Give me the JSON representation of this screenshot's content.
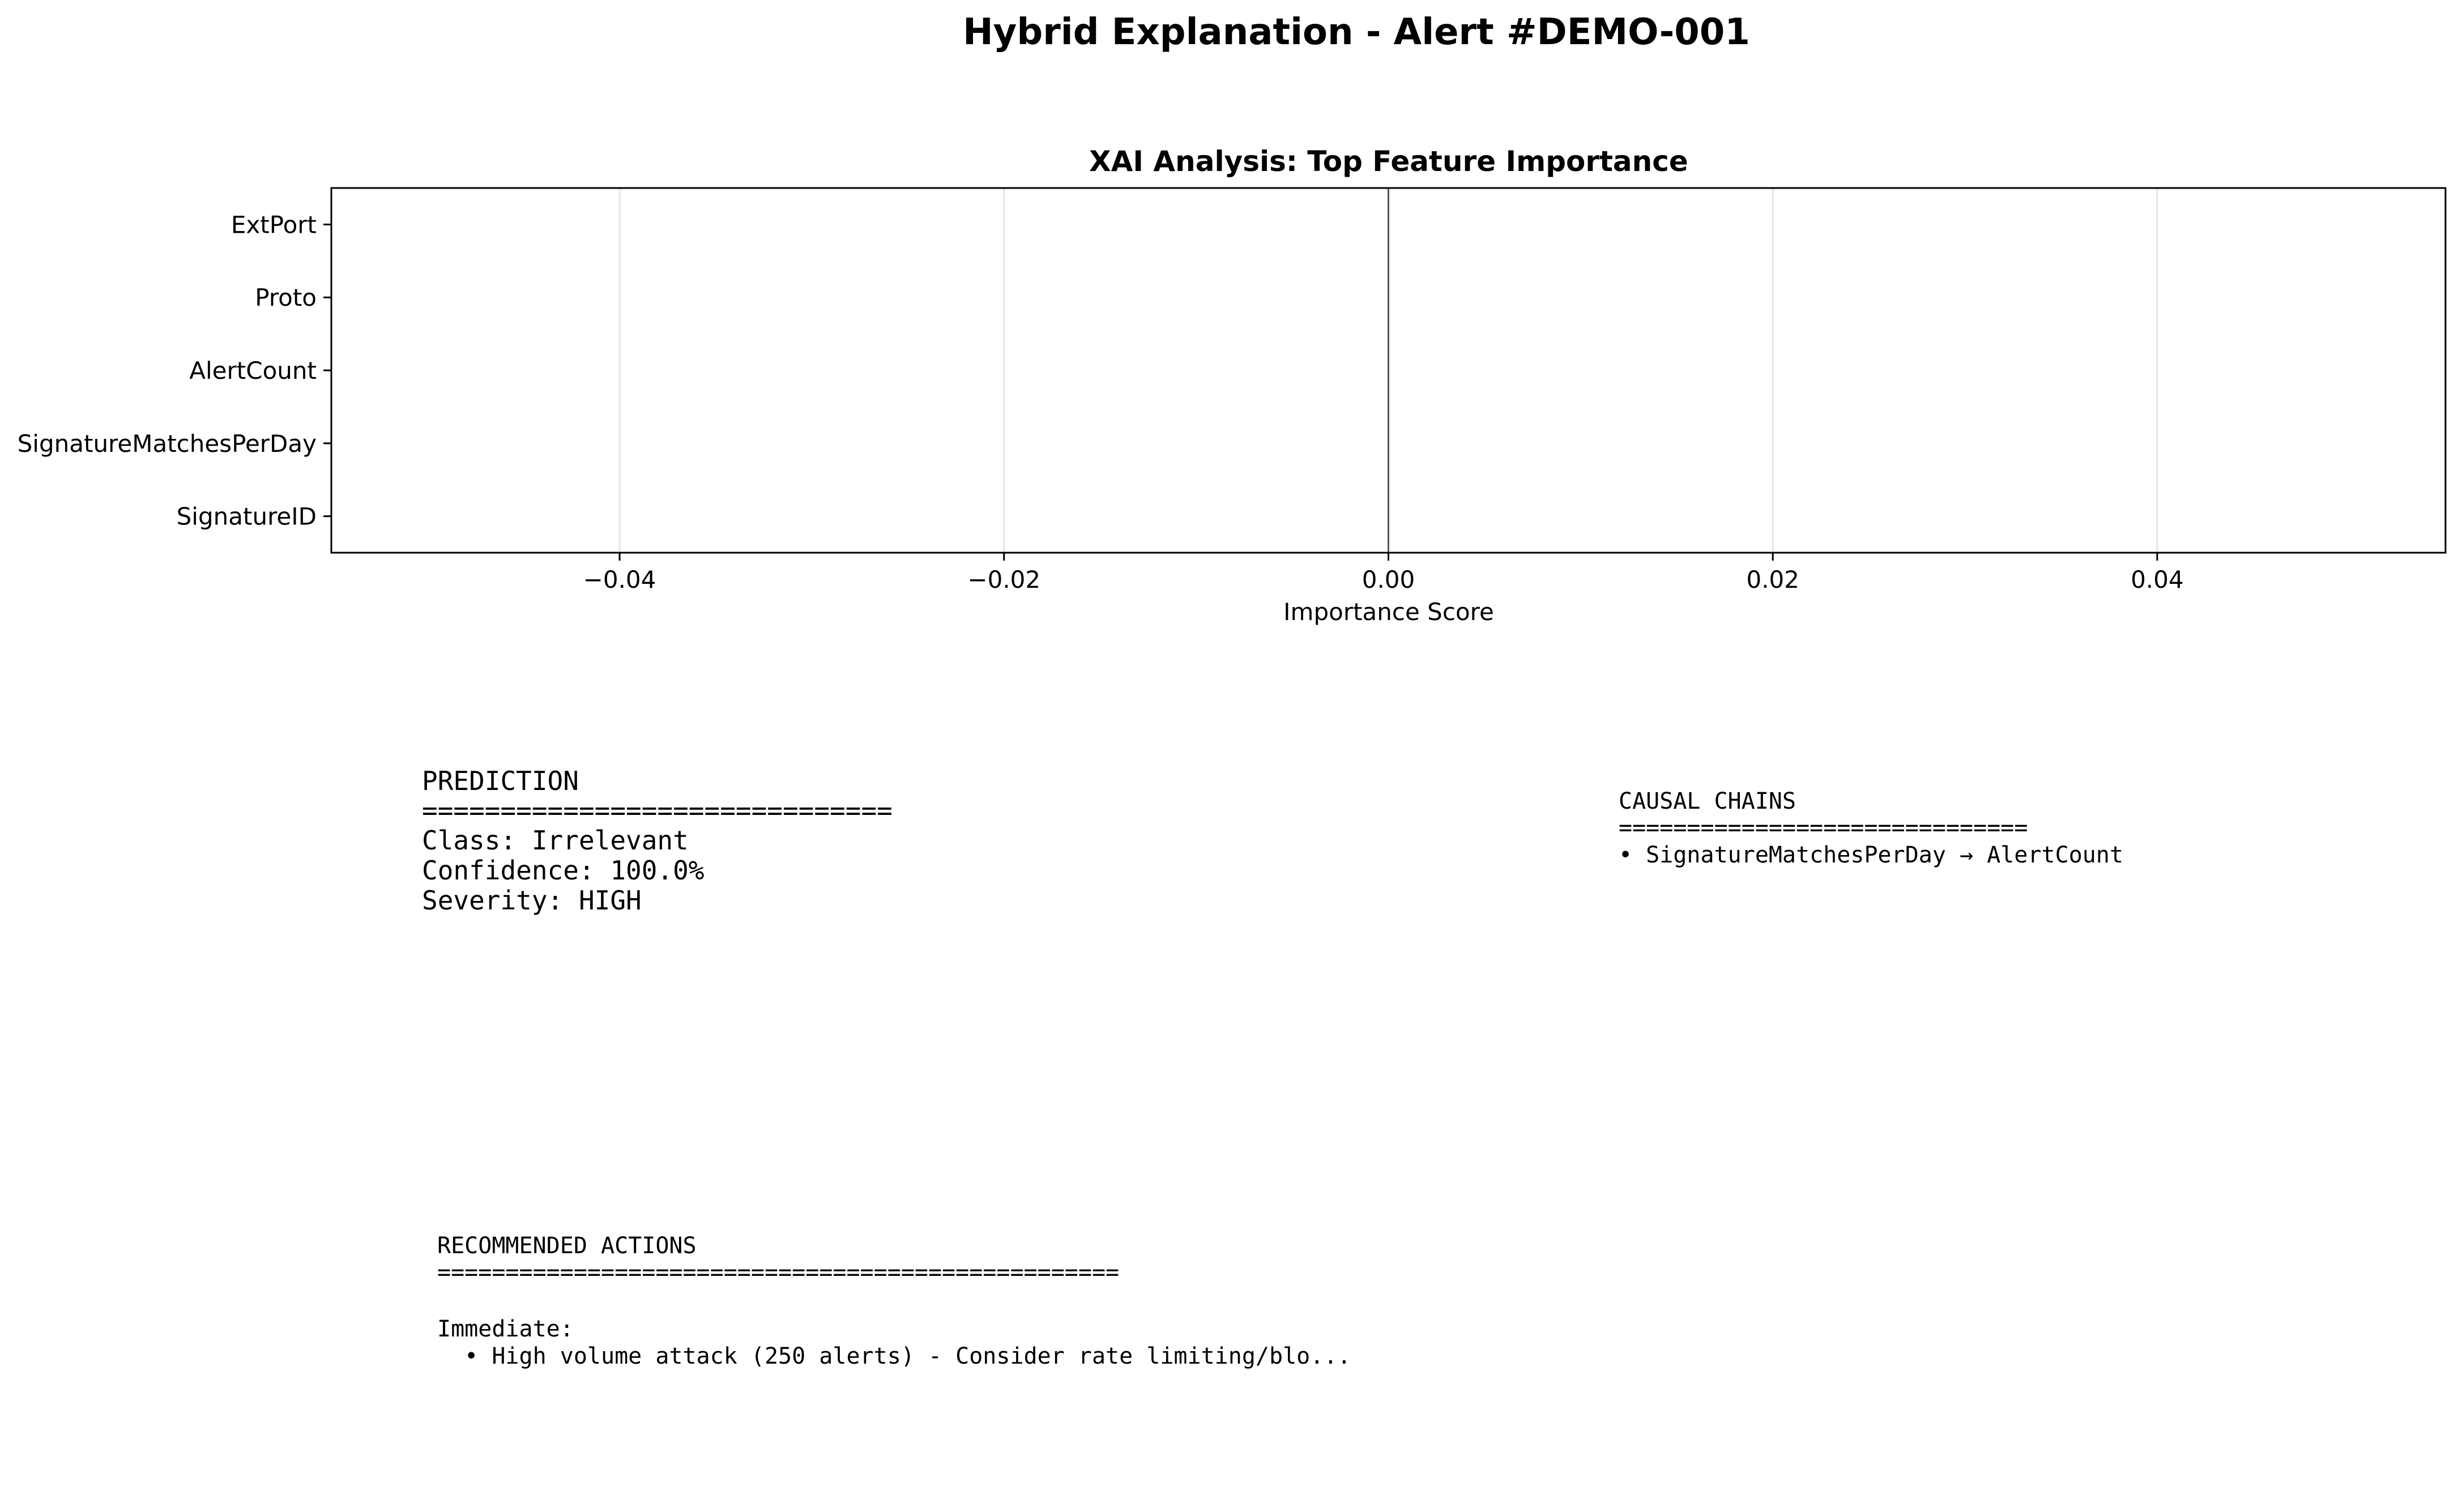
{
  "figure": {
    "suptitle": "Hybrid Explanation - Alert #DEMO-001"
  },
  "chart_data": {
    "type": "bar",
    "orientation": "horizontal",
    "title": "XAI Analysis: Top Feature Importance",
    "xlabel": "Importance Score",
    "ylabel": "",
    "categories": [
      "ExtPort",
      "Proto",
      "AlertCount",
      "SignatureMatchesPerDay",
      "SignatureID"
    ],
    "values": [
      0,
      0,
      0,
      0,
      0
    ],
    "xlim": [
      -0.055,
      0.055
    ],
    "xticks": [
      -0.04,
      -0.02,
      0.0,
      0.02,
      0.04
    ],
    "xtick_labels": [
      "−0.04",
      "−0.02",
      "0.00",
      "0.02",
      "0.04"
    ],
    "grid": "x",
    "zero_line": true
  },
  "prediction": {
    "heading": "PREDICTION",
    "separator": "==============================",
    "lines": [
      "Class: Irrelevant",
      "Confidence: 100.0%",
      "Severity: HIGH"
    ]
  },
  "causal": {
    "heading": "CAUSAL CHAINS",
    "separator": "==============================",
    "lines": [
      "• SignatureMatchesPerDay → AlertCount"
    ]
  },
  "actions": {
    "heading": "RECOMMENDED ACTIONS",
    "separator": "==================================================",
    "subheading": "Immediate:",
    "lines": [
      "  • High volume attack (250 alerts) - Consider rate limiting/blo..."
    ]
  },
  "colors": {
    "text": "#000000",
    "grid": "#e5e5e5",
    "axes": "#000000",
    "zero_line": "#555555"
  }
}
